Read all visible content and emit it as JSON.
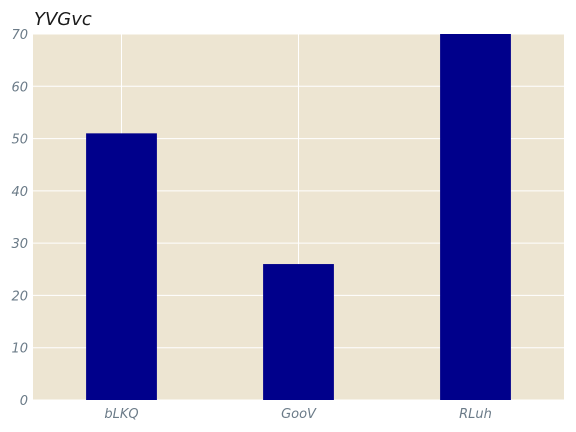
{
  "chart_data": {
    "type": "bar",
    "title": "YVGvc",
    "xlabel": "",
    "ylabel": "",
    "categories": [
      "bLKQ",
      "GooV",
      "RLuh"
    ],
    "values": [
      51,
      26,
      70
    ],
    "ylim": [
      0,
      70
    ],
    "yticks": [
      0,
      10,
      20,
      30,
      40,
      50,
      60,
      70
    ],
    "grid": true,
    "colors": {
      "bar": "#00008b",
      "plot_background": "#ede5d2",
      "grid": "#ffffff",
      "tick_label": "#6b7b88"
    }
  }
}
